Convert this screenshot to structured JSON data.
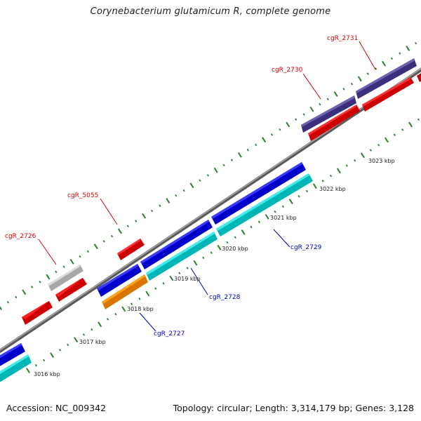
{
  "title": "Corynebacterium glutamicum R, complete genome",
  "footer": {
    "accession": "Accession: NC_009342",
    "topology": "Topology: circular; Length: 3,314,179 bp; Genes: 3,128"
  },
  "colors": {
    "backbone": "#8a8a8a",
    "tick": "#2f7d2f",
    "red": "#ff1c1c",
    "blue": "#1c1ce6",
    "cyan": "#12d6d6",
    "navy": "#4a3f8c",
    "orange": "#ff8c00",
    "gray": "#c4c4c4",
    "label_red": "#d40000",
    "label_blue": "#0000cc"
  },
  "kbp_labels": [
    "3016 kbp",
    "3017 kbp",
    "3018 kbp",
    "3019 kbp",
    "3020 kbp",
    "3021 kbp",
    "3022 kbp",
    "3023 kbp"
  ],
  "gene_labels": {
    "cgR_2726": "cgR_2726",
    "cgR_5055": "cgR_5055",
    "cgR_2727": "cgR_2727",
    "cgR_2728": "cgR_2728",
    "cgR_2729": "cgR_2729",
    "cgR_2730": "cgR_2730",
    "cgR_2731": "cgR_2731"
  }
}
